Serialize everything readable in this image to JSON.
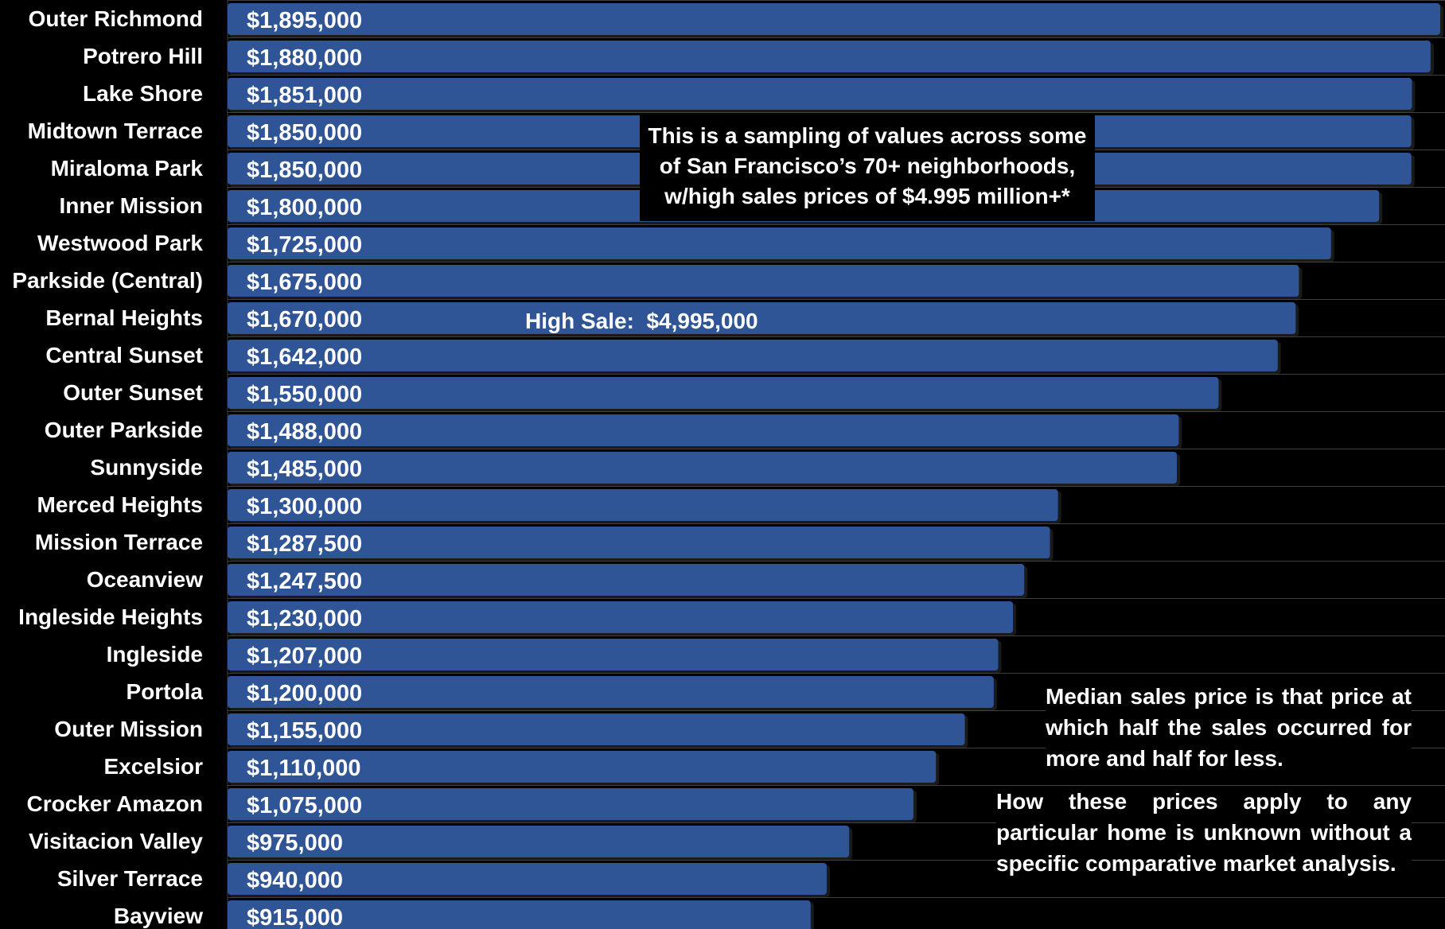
{
  "chart_data": {
    "type": "bar",
    "orientation": "horizontal",
    "categories": [
      "Outer Richmond",
      "Potrero Hill",
      "Lake Shore",
      "Midtown Terrace",
      "Miraloma Park",
      "Inner Mission",
      "Westwood Park",
      "Parkside (Central)",
      "Bernal Heights",
      "Central Sunset",
      "Outer Sunset",
      "Outer Parkside",
      "Sunnyside",
      "Merced Heights",
      "Mission Terrace",
      "Oceanview",
      "Ingleside Heights",
      "Ingleside",
      "Portola",
      "Outer Mission",
      "Excelsior",
      "Crocker Amazon",
      "Visitacion Valley",
      "Silver Terrace",
      "Bayview"
    ],
    "values": [
      1895000,
      1880000,
      1851000,
      1850000,
      1850000,
      1800000,
      1725000,
      1675000,
      1670000,
      1642000,
      1550000,
      1488000,
      1485000,
      1300000,
      1287500,
      1247500,
      1230000,
      1207000,
      1200000,
      1155000,
      1110000,
      1075000,
      975000,
      940000,
      915000
    ],
    "data_labels": [
      "$1,895,000",
      "$1,880,000",
      "$1,851,000",
      "$1,850,000",
      "$1,850,000",
      "$1,800,000",
      "$1,725,000",
      "$1,675,000",
      "$1,670,000",
      "$1,642,000",
      "$1,550,000",
      "$1,488,000",
      "$1,485,000",
      "$1,300,000",
      "$1,287,500",
      "$1,247,500",
      "$1,230,000",
      "$1,207,000",
      "$1,200,000",
      "$1,155,000",
      "$1,110,000",
      "$1,075,000",
      "$975,000",
      "$940,000",
      "$915,000"
    ],
    "title": "",
    "xlabel": "",
    "ylabel": "",
    "xlim": [
      0,
      1895000
    ],
    "grid": true,
    "legend": "none",
    "colors": {
      "bar": "#2F5597",
      "background": "#000000",
      "text": "#ffffff",
      "grid": "#404040"
    }
  },
  "annotations": {
    "sampling_line1": "This is a sampling of values across some",
    "sampling_line2": "of San Francisco’s 70+ neighborhoods,",
    "sampling_line3": "w/high sales prices of $4.995 million+*",
    "high_sale": "High Sale:  $4,995,000",
    "median_note": "Median sales price is that price at which half the sales occurred for more and half for less.",
    "how_note": "How these prices apply to any particular home is unknown without a specific comparative market analysis."
  }
}
